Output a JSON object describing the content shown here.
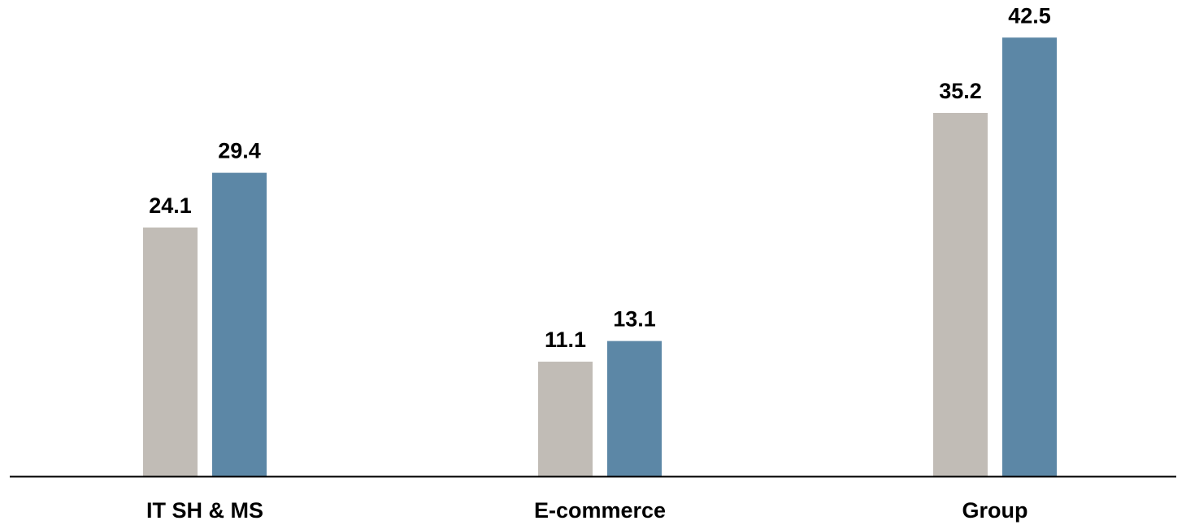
{
  "colors": {
    "series_a": "#c1bcb6",
    "series_b": "#5c87a6",
    "axis": "#000000"
  },
  "chart_data": {
    "type": "bar",
    "categories": [
      "IT SH & MS",
      "E-commerce",
      "Group"
    ],
    "series": [
      {
        "values": [
          24.1,
          11.1,
          35.2
        ]
      },
      {
        "values": [
          29.4,
          13.1,
          42.5
        ]
      }
    ],
    "title": "",
    "xlabel": "",
    "ylabel": "",
    "ylim": [
      0,
      47
    ],
    "grid": false,
    "legend": "none",
    "data_labels": true
  }
}
